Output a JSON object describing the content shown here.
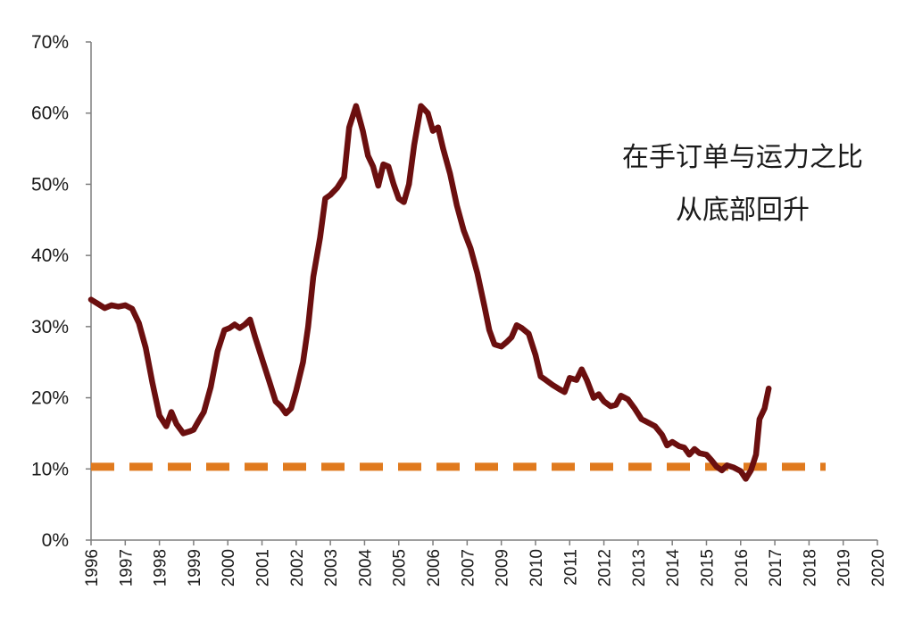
{
  "chart_data": {
    "type": "line",
    "title": "",
    "xlabel": "",
    "ylabel": "",
    "x_ticks": [
      "1996",
      "1997",
      "1998",
      "1999",
      "2000",
      "2001",
      "2002",
      "2003",
      "2004",
      "2005",
      "2006",
      "2007",
      "2009",
      "2010",
      "2011",
      "2012",
      "2013",
      "2014",
      "2015",
      "2016",
      "2017",
      "2018",
      "2019",
      "2020"
    ],
    "y_ticks": [
      "0%",
      "10%",
      "20%",
      "30%",
      "40%",
      "50%",
      "60%",
      "70%"
    ],
    "ylim": [
      0,
      70
    ],
    "annotation": [
      "在手订单与运力之比",
      "从底部回升"
    ],
    "reference_line": {
      "value": 10.3,
      "style": "dashed",
      "color": "#e07a1e"
    },
    "series": [
      {
        "color": "#6b0f0f",
        "points": [
          [
            0.0,
            33.8
          ],
          [
            0.2,
            33.2
          ],
          [
            0.4,
            32.6
          ],
          [
            0.6,
            33.0
          ],
          [
            0.8,
            32.8
          ],
          [
            1.0,
            33.0
          ],
          [
            1.2,
            32.5
          ],
          [
            1.4,
            30.5
          ],
          [
            1.6,
            27.0
          ],
          [
            1.8,
            22.0
          ],
          [
            2.0,
            17.5
          ],
          [
            2.2,
            16.0
          ],
          [
            2.35,
            18.0
          ],
          [
            2.5,
            16.3
          ],
          [
            2.7,
            15.0
          ],
          [
            2.9,
            15.3
          ],
          [
            3.0,
            15.5
          ],
          [
            3.15,
            16.8
          ],
          [
            3.3,
            18.0
          ],
          [
            3.5,
            21.5
          ],
          [
            3.7,
            26.5
          ],
          [
            3.9,
            29.5
          ],
          [
            4.05,
            29.8
          ],
          [
            4.2,
            30.3
          ],
          [
            4.35,
            29.8
          ],
          [
            4.5,
            30.3
          ],
          [
            4.65,
            31.0
          ],
          [
            4.8,
            28.5
          ],
          [
            5.0,
            25.5
          ],
          [
            5.2,
            22.5
          ],
          [
            5.4,
            19.5
          ],
          [
            5.55,
            18.8
          ],
          [
            5.7,
            17.8
          ],
          [
            5.85,
            18.5
          ],
          [
            6.0,
            21.0
          ],
          [
            6.2,
            25.0
          ],
          [
            6.35,
            30.0
          ],
          [
            6.5,
            37.0
          ],
          [
            6.7,
            42.5
          ],
          [
            6.85,
            48.0
          ],
          [
            7.0,
            48.5
          ],
          [
            7.2,
            49.5
          ],
          [
            7.4,
            51.0
          ],
          [
            7.55,
            58.0
          ],
          [
            7.75,
            61.0
          ],
          [
            7.95,
            57.5
          ],
          [
            8.1,
            54.0
          ],
          [
            8.25,
            52.5
          ],
          [
            8.4,
            49.8
          ],
          [
            8.55,
            52.8
          ],
          [
            8.7,
            52.5
          ],
          [
            8.85,
            50.0
          ],
          [
            9.0,
            48.0
          ],
          [
            9.15,
            47.5
          ],
          [
            9.3,
            50.0
          ],
          [
            9.45,
            55.5
          ],
          [
            9.65,
            61.0
          ],
          [
            9.85,
            60.0
          ],
          [
            10.0,
            57.5
          ],
          [
            10.15,
            58.0
          ],
          [
            10.3,
            55.0
          ],
          [
            10.5,
            51.5
          ],
          [
            10.7,
            47.0
          ],
          [
            10.9,
            43.5
          ],
          [
            11.1,
            41.0
          ],
          [
            11.3,
            37.5
          ],
          [
            11.5,
            33.0
          ],
          [
            11.65,
            29.5
          ],
          [
            11.8,
            27.5
          ],
          [
            12.0,
            27.2
          ],
          [
            12.15,
            27.8
          ],
          [
            12.3,
            28.5
          ],
          [
            12.45,
            30.2
          ],
          [
            12.6,
            29.8
          ],
          [
            12.8,
            29.0
          ],
          [
            13.0,
            26.0
          ],
          [
            13.15,
            23.0
          ],
          [
            13.3,
            22.5
          ],
          [
            13.5,
            21.8
          ],
          [
            13.7,
            21.2
          ],
          [
            13.85,
            20.8
          ],
          [
            14.0,
            22.8
          ],
          [
            14.2,
            22.5
          ],
          [
            14.35,
            24.0
          ],
          [
            14.5,
            22.5
          ],
          [
            14.7,
            20.0
          ],
          [
            14.85,
            20.5
          ],
          [
            15.0,
            19.5
          ],
          [
            15.2,
            18.8
          ],
          [
            15.35,
            19.0
          ],
          [
            15.5,
            20.3
          ],
          [
            15.7,
            19.8
          ],
          [
            15.9,
            18.5
          ],
          [
            16.1,
            17.0
          ],
          [
            16.3,
            16.5
          ],
          [
            16.5,
            16.0
          ],
          [
            16.7,
            14.8
          ],
          [
            16.85,
            13.3
          ],
          [
            17.0,
            13.8
          ],
          [
            17.2,
            13.2
          ],
          [
            17.35,
            13.0
          ],
          [
            17.5,
            12.0
          ],
          [
            17.65,
            12.8
          ],
          [
            17.8,
            12.2
          ],
          [
            18.0,
            12.0
          ],
          [
            18.15,
            11.2
          ],
          [
            18.3,
            10.3
          ],
          [
            18.45,
            9.8
          ],
          [
            18.6,
            10.5
          ],
          [
            18.8,
            10.2
          ],
          [
            19.0,
            9.7
          ],
          [
            19.15,
            8.6
          ],
          [
            19.3,
            9.8
          ],
          [
            19.45,
            12.0
          ],
          [
            19.55,
            17.0
          ],
          [
            19.7,
            18.5
          ],
          [
            19.82,
            21.3
          ]
        ]
      }
    ]
  }
}
